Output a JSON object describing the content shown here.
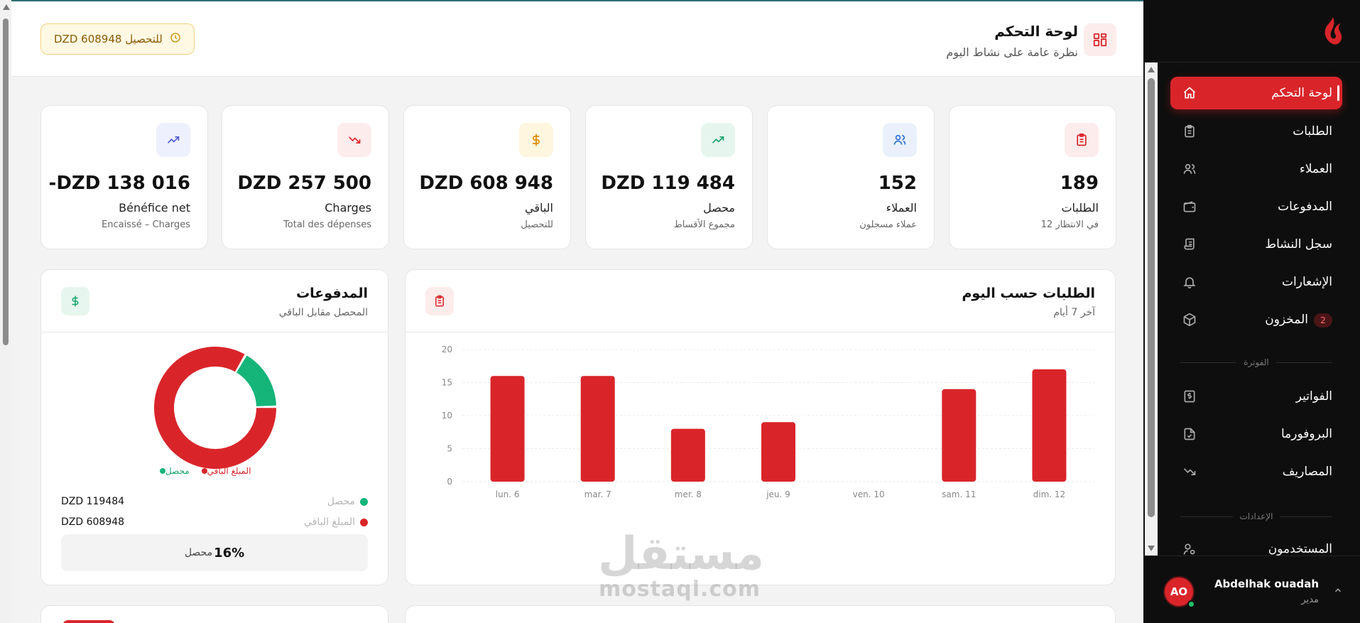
{
  "header": {
    "title": "لوحة التحكم",
    "subtitle": "نظرة عامة على نشاط اليوم",
    "pill": "DZD 608948 للتحصيل"
  },
  "stats": [
    {
      "value": "189",
      "label": "الطلبات",
      "sub": "12 في الانتظار",
      "icon": "clipboard-icon",
      "color": "#d9252a"
    },
    {
      "value": "152",
      "label": "العملاء",
      "sub": "عملاء مسجلون",
      "icon": "users-icon",
      "color": "#2f6fd6"
    },
    {
      "value": "DZD 119 484",
      "label": "محصل",
      "sub": "مجموع الأقساط",
      "icon": "trending-up-icon",
      "color": "#15a36a"
    },
    {
      "value": "DZD 608 948",
      "label": "الباقي",
      "sub": "للتحصيل",
      "icon": "dollar-icon",
      "color": "#d98a00"
    },
    {
      "value": "DZD 257 500",
      "label": "Charges",
      "sub": "Total des dépenses",
      "icon": "trending-down-icon",
      "color": "#d9252a"
    },
    {
      "value": "-DZD 138 016",
      "label": "Bénéfice net",
      "sub": "Encaissé – Charges",
      "icon": "trending-up-icon",
      "color": "#4a5ad6"
    }
  ],
  "payments": {
    "title": "المدفوعات",
    "subtitle": "المحصل مقابل الباقي",
    "legend_collected": "محصل",
    "legend_remaining": "المبلغ الباقي",
    "rows": [
      {
        "label": "محصل",
        "value": "DZD 119484",
        "color": "#15b57a"
      },
      {
        "label": "المبلغ الباقي",
        "value": "DZD 608948",
        "color": "#d9252a"
      }
    ],
    "percent": "16%",
    "percent_label": "محصل"
  },
  "orders_chart": {
    "title": "الطلبات حسب اليوم",
    "subtitle": "آخر 7 أيام"
  },
  "chart_data": [
    {
      "type": "bar",
      "categories": [
        "lun. 6",
        "mar. 7",
        "mer. 8",
        "jeu. 9",
        "ven. 10",
        "sam. 11",
        "dim. 12"
      ],
      "values": [
        16,
        16,
        8,
        9,
        0,
        14,
        17
      ],
      "yticks": [
        0,
        5,
        10,
        15,
        20
      ],
      "ylim": [
        0,
        20
      ],
      "color": "#d9252a",
      "grid": true
    },
    {
      "type": "pie",
      "labels": [
        "محصل",
        "المبلغ الباقي"
      ],
      "values": [
        119484,
        608948
      ],
      "colors": [
        "#15b57a",
        "#d9252a"
      ],
      "donut": true
    }
  ],
  "sidebar": {
    "items": [
      {
        "label": "لوحة التحكم",
        "icon": "home-icon",
        "active": true
      },
      {
        "label": "الطلبات",
        "icon": "clipboard-icon"
      },
      {
        "label": "العملاء",
        "icon": "users-icon"
      },
      {
        "label": "المدفوعات",
        "icon": "wallet-icon"
      },
      {
        "label": "سجل النشاط",
        "icon": "scroll-icon"
      },
      {
        "label": "الإشعارات",
        "icon": "bell-icon"
      },
      {
        "label": "المخزون",
        "icon": "box-icon",
        "badge": "2"
      },
      {
        "label": "الفواتير",
        "icon": "invoice-icon"
      },
      {
        "label": "البروفورما",
        "icon": "file-check-icon"
      },
      {
        "label": "المصاريف",
        "icon": "trending-down-icon"
      },
      {
        "label": "المستخدمون",
        "icon": "user-cog-icon"
      }
    ],
    "section_billing": "الفوترة",
    "section_settings": "الإعدادات",
    "user": {
      "initials": "AO",
      "name": "Abdelhak ouadah",
      "role": "مدير"
    }
  },
  "watermark": {
    "arabic": "مستقل",
    "latin": "mostaql.com"
  }
}
